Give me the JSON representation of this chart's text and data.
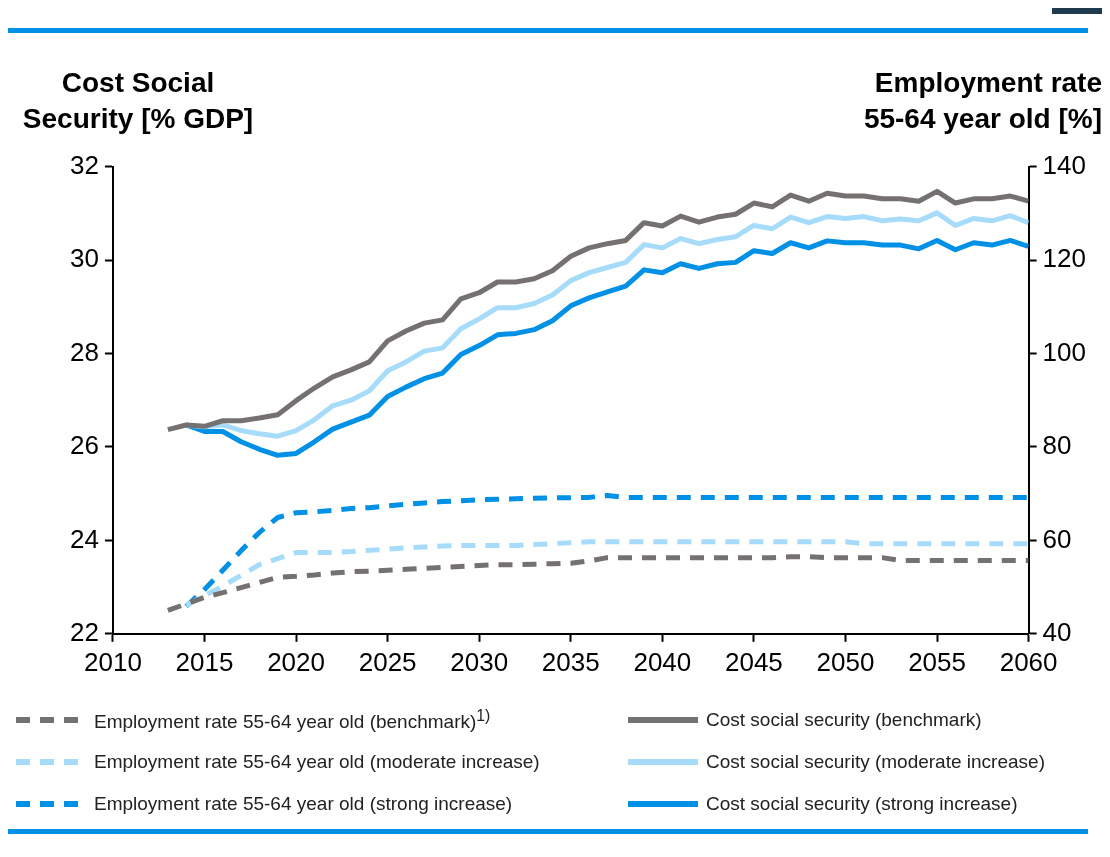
{
  "chart_data": {
    "type": "line",
    "ylabel": "Cost Social Security [% GDP]",
    "y2label": "Employment rate 55-64 year old [%]",
    "x": [
      2013,
      2014,
      2015,
      2016,
      2017,
      2018,
      2019,
      2020,
      2021,
      2022,
      2023,
      2024,
      2025,
      2026,
      2027,
      2028,
      2029,
      2030,
      2031,
      2032,
      2033,
      2034,
      2035,
      2036,
      2037,
      2038,
      2039,
      2040,
      2041,
      2042,
      2043,
      2044,
      2045,
      2046,
      2047,
      2048,
      2049,
      2050,
      2051,
      2052,
      2053,
      2054,
      2055,
      2056,
      2057,
      2058,
      2059,
      2060
    ],
    "xlim": [
      2010,
      2060
    ],
    "xticks": [
      2010,
      2015,
      2020,
      2025,
      2030,
      2035,
      2040,
      2045,
      2050,
      2055,
      2060
    ],
    "ylim": [
      22,
      32
    ],
    "yticks": [
      22,
      24,
      26,
      28,
      30,
      32
    ],
    "y2lim": [
      40,
      140
    ],
    "y2ticks": [
      40,
      60,
      80,
      100,
      120,
      140
    ],
    "grid": false,
    "legend": "bottom",
    "series": [
      {
        "name": "Employment rate 55-64 year old (benchmark)$^{1)}$",
        "color": "#767171",
        "axis": "y2",
        "line_style": "dashed",
        "values": [
          45.0,
          46.4,
          47.8,
          48.8,
          49.9,
          51.0,
          52.1,
          52.3,
          52.6,
          53.0,
          53.3,
          53.4,
          53.6,
          53.8,
          54.0,
          54.2,
          54.4,
          54.6,
          54.8,
          54.8,
          54.9,
          55.0,
          55.1,
          55.6,
          56.3,
          56.3,
          56.3,
          56.3,
          56.3,
          56.3,
          56.3,
          56.3,
          56.3,
          56.3,
          56.5,
          56.5,
          56.3,
          56.3,
          56.3,
          56.3,
          55.7,
          55.7,
          55.7,
          55.7,
          55.7,
          55.7,
          55.7,
          55.7
        ]
      },
      {
        "name": "Employment rate 55-64 year old (moderate increase)",
        "color": "#a6dcfa",
        "axis": "y2",
        "line_style": "dashed",
        "values": [
          null,
          46.1,
          48.2,
          50.2,
          52.5,
          54.8,
          56.1,
          57.4,
          57.4,
          57.4,
          57.6,
          57.9,
          58.1,
          58.4,
          58.6,
          58.8,
          58.9,
          58.9,
          58.9,
          58.9,
          59.1,
          59.3,
          59.5,
          59.7,
          59.7,
          59.7,
          59.7,
          59.7,
          59.7,
          59.7,
          59.7,
          59.7,
          59.7,
          59.7,
          59.7,
          59.7,
          59.7,
          59.7,
          59.3,
          59.3,
          59.3,
          59.3,
          59.3,
          59.3,
          59.3,
          59.3,
          59.3,
          59.3
        ]
      },
      {
        "name": "Employment rate 55-64 year old (strong increase)",
        "color": "#0091e6",
        "axis": "y2",
        "line_style": "dashed",
        "values": [
          null,
          45.9,
          49.5,
          53.6,
          57.8,
          61.7,
          64.9,
          65.9,
          66.1,
          66.4,
          66.8,
          67.0,
          67.4,
          67.7,
          68.0,
          68.3,
          68.5,
          68.7,
          68.8,
          68.9,
          69.0,
          69.1,
          69.1,
          69.2,
          69.6,
          69.2,
          69.2,
          69.2,
          69.2,
          69.2,
          69.2,
          69.2,
          69.2,
          69.2,
          69.2,
          69.2,
          69.2,
          69.2,
          69.2,
          69.2,
          69.2,
          69.2,
          69.2,
          69.2,
          69.2,
          69.2,
          69.2,
          69.2
        ]
      },
      {
        "name": "Cost social security (benchmark)",
        "color": "#767171",
        "line_style": "solid",
        "values": [
          26.37,
          26.47,
          26.44,
          26.56,
          26.56,
          26.62,
          26.69,
          26.99,
          27.26,
          27.5,
          27.65,
          27.82,
          28.27,
          28.48,
          28.65,
          28.72,
          29.17,
          29.3,
          29.53,
          29.53,
          29.6,
          29.77,
          30.08,
          30.26,
          30.35,
          30.42,
          30.8,
          30.73,
          30.94,
          30.81,
          30.92,
          30.98,
          31.22,
          31.14,
          31.39,
          31.26,
          31.43,
          31.37,
          31.37,
          31.31,
          31.31,
          31.26,
          31.47,
          31.22,
          31.31,
          31.31,
          31.37,
          31.26
        ]
      },
      {
        "name": "Cost social security (moderate increase)",
        "color": "#a6dcfa",
        "line_style": "solid",
        "values": [
          null,
          26.47,
          26.43,
          26.47,
          26.35,
          26.28,
          26.23,
          26.35,
          26.58,
          26.88,
          27.0,
          27.2,
          27.63,
          27.82,
          28.05,
          28.12,
          28.53,
          28.74,
          28.98,
          28.98,
          29.07,
          29.25,
          29.56,
          29.73,
          29.84,
          29.95,
          30.33,
          30.26,
          30.46,
          30.35,
          30.44,
          30.5,
          30.74,
          30.67,
          30.92,
          30.8,
          30.93,
          30.89,
          30.93,
          30.84,
          30.88,
          30.84,
          31.01,
          30.74,
          30.89,
          30.84,
          30.95,
          30.8
        ]
      },
      {
        "name": "Cost social security (strong increase)",
        "color": "#0091e6",
        "line_style": "solid",
        "values": [
          null,
          26.47,
          26.33,
          26.33,
          26.11,
          25.95,
          25.82,
          25.86,
          26.11,
          26.38,
          26.53,
          26.68,
          27.08,
          27.28,
          27.46,
          27.58,
          27.98,
          28.17,
          28.4,
          28.43,
          28.51,
          28.7,
          29.02,
          29.19,
          29.32,
          29.44,
          29.79,
          29.73,
          29.92,
          29.82,
          29.92,
          29.95,
          30.2,
          30.14,
          30.37,
          30.26,
          30.41,
          30.37,
          30.37,
          30.32,
          30.32,
          30.24,
          30.42,
          30.22,
          30.37,
          30.32,
          30.42,
          30.29
        ]
      }
    ]
  }
}
